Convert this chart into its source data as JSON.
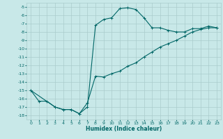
{
  "title": "",
  "xlabel": "Humidex (Indice chaleur)",
  "bg_color": "#c8e8e8",
  "grid_color": "#aacccc",
  "line_color": "#006666",
  "marker": "+",
  "xlim": [
    -0.5,
    23.5
  ],
  "ylim": [
    -18.5,
    -4.5
  ],
  "xticks": [
    0,
    1,
    2,
    3,
    4,
    5,
    6,
    7,
    8,
    9,
    10,
    11,
    12,
    13,
    14,
    15,
    16,
    17,
    18,
    19,
    20,
    21,
    22,
    23
  ],
  "yticks": [
    -5,
    -6,
    -7,
    -8,
    -9,
    -10,
    -11,
    -12,
    -13,
    -14,
    -15,
    -16,
    -17,
    -18
  ],
  "curve1_x": [
    0,
    1,
    2,
    3,
    4,
    5,
    6,
    7,
    8,
    9,
    10,
    11,
    12,
    13,
    14,
    15,
    16,
    17,
    18,
    19,
    20,
    21,
    22,
    23
  ],
  "curve1_y": [
    -15.0,
    -16.3,
    -16.3,
    -17.0,
    -17.3,
    -17.3,
    -17.8,
    -17.0,
    -7.2,
    -6.5,
    -6.3,
    -5.2,
    -5.1,
    -5.3,
    -6.3,
    -7.5,
    -7.5,
    -7.8,
    -8.0,
    -8.0,
    -7.6,
    -7.6,
    -7.3,
    -7.5
  ],
  "curve2_x": [
    0,
    3,
    4,
    5,
    6,
    7,
    8,
    9,
    10,
    11,
    12,
    13,
    14,
    15,
    16,
    17,
    18,
    19,
    20,
    21,
    22,
    23
  ],
  "curve2_y": [
    -15.0,
    -17.0,
    -17.3,
    -17.3,
    -17.8,
    -16.5,
    -13.3,
    -13.4,
    -13.0,
    -12.7,
    -12.1,
    -11.7,
    -11.0,
    -10.4,
    -9.8,
    -9.4,
    -9.0,
    -8.5,
    -8.0,
    -7.7,
    -7.5,
    -7.5
  ]
}
